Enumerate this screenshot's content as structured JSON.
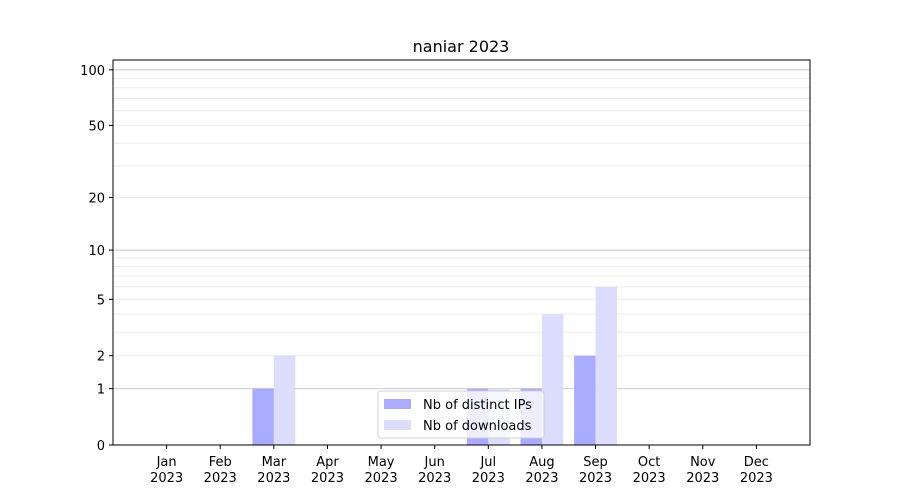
{
  "chart_data": {
    "type": "bar",
    "title": "naniar 2023",
    "xlabel": "",
    "ylabel": "",
    "categories": [
      "Jan\n2023",
      "Feb\n2023",
      "Mar\n2023",
      "Apr\n2023",
      "May\n2023",
      "Jun\n2023",
      "Jul\n2023",
      "Aug\n2023",
      "Sep\n2023",
      "Oct\n2023",
      "Nov\n2023",
      "Dec\n2023"
    ],
    "series": [
      {
        "name": "Nb of distinct IPs",
        "color": "#aaaaff",
        "values": [
          0,
          0,
          1,
          0,
          0,
          0,
          1,
          1,
          2,
          0,
          0,
          0
        ]
      },
      {
        "name": "Nb of downloads",
        "color": "#dcdcfc",
        "values": [
          0,
          0,
          2,
          0,
          0,
          0,
          1,
          4,
          6,
          0,
          0,
          0
        ]
      }
    ],
    "y_scale": "log10(1+y)",
    "ylim": [
      0,
      113
    ],
    "y_ticks": [
      0,
      1,
      2,
      5,
      10,
      20,
      50,
      100
    ],
    "grid": true,
    "legend": "lower-center"
  }
}
